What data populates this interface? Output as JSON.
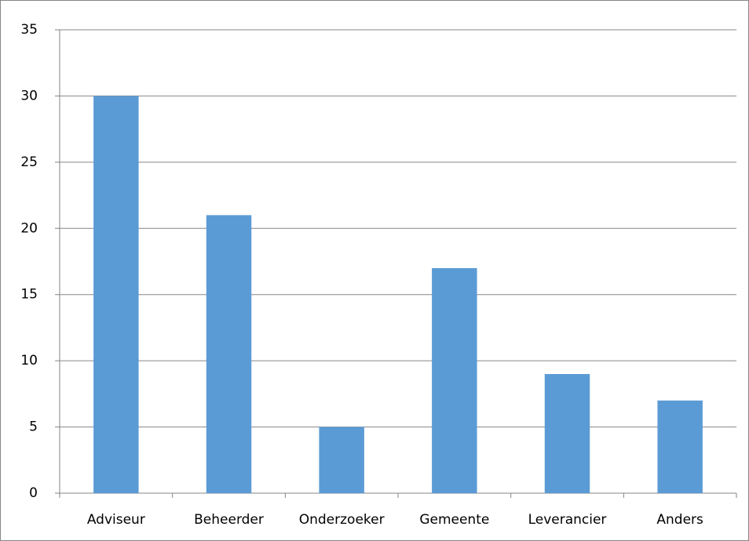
{
  "chart_data": {
    "type": "bar",
    "categories": [
      "Adviseur",
      "Beheerder",
      "Onderzoeker",
      "Gemeente",
      "Leverancier",
      "Anders"
    ],
    "values": [
      30,
      21,
      5,
      17,
      9,
      7
    ],
    "color": "#5b9bd5",
    "ylim": [
      0,
      35
    ],
    "yticks": [
      0,
      5,
      10,
      15,
      20,
      25,
      30,
      35
    ],
    "grid": true
  }
}
